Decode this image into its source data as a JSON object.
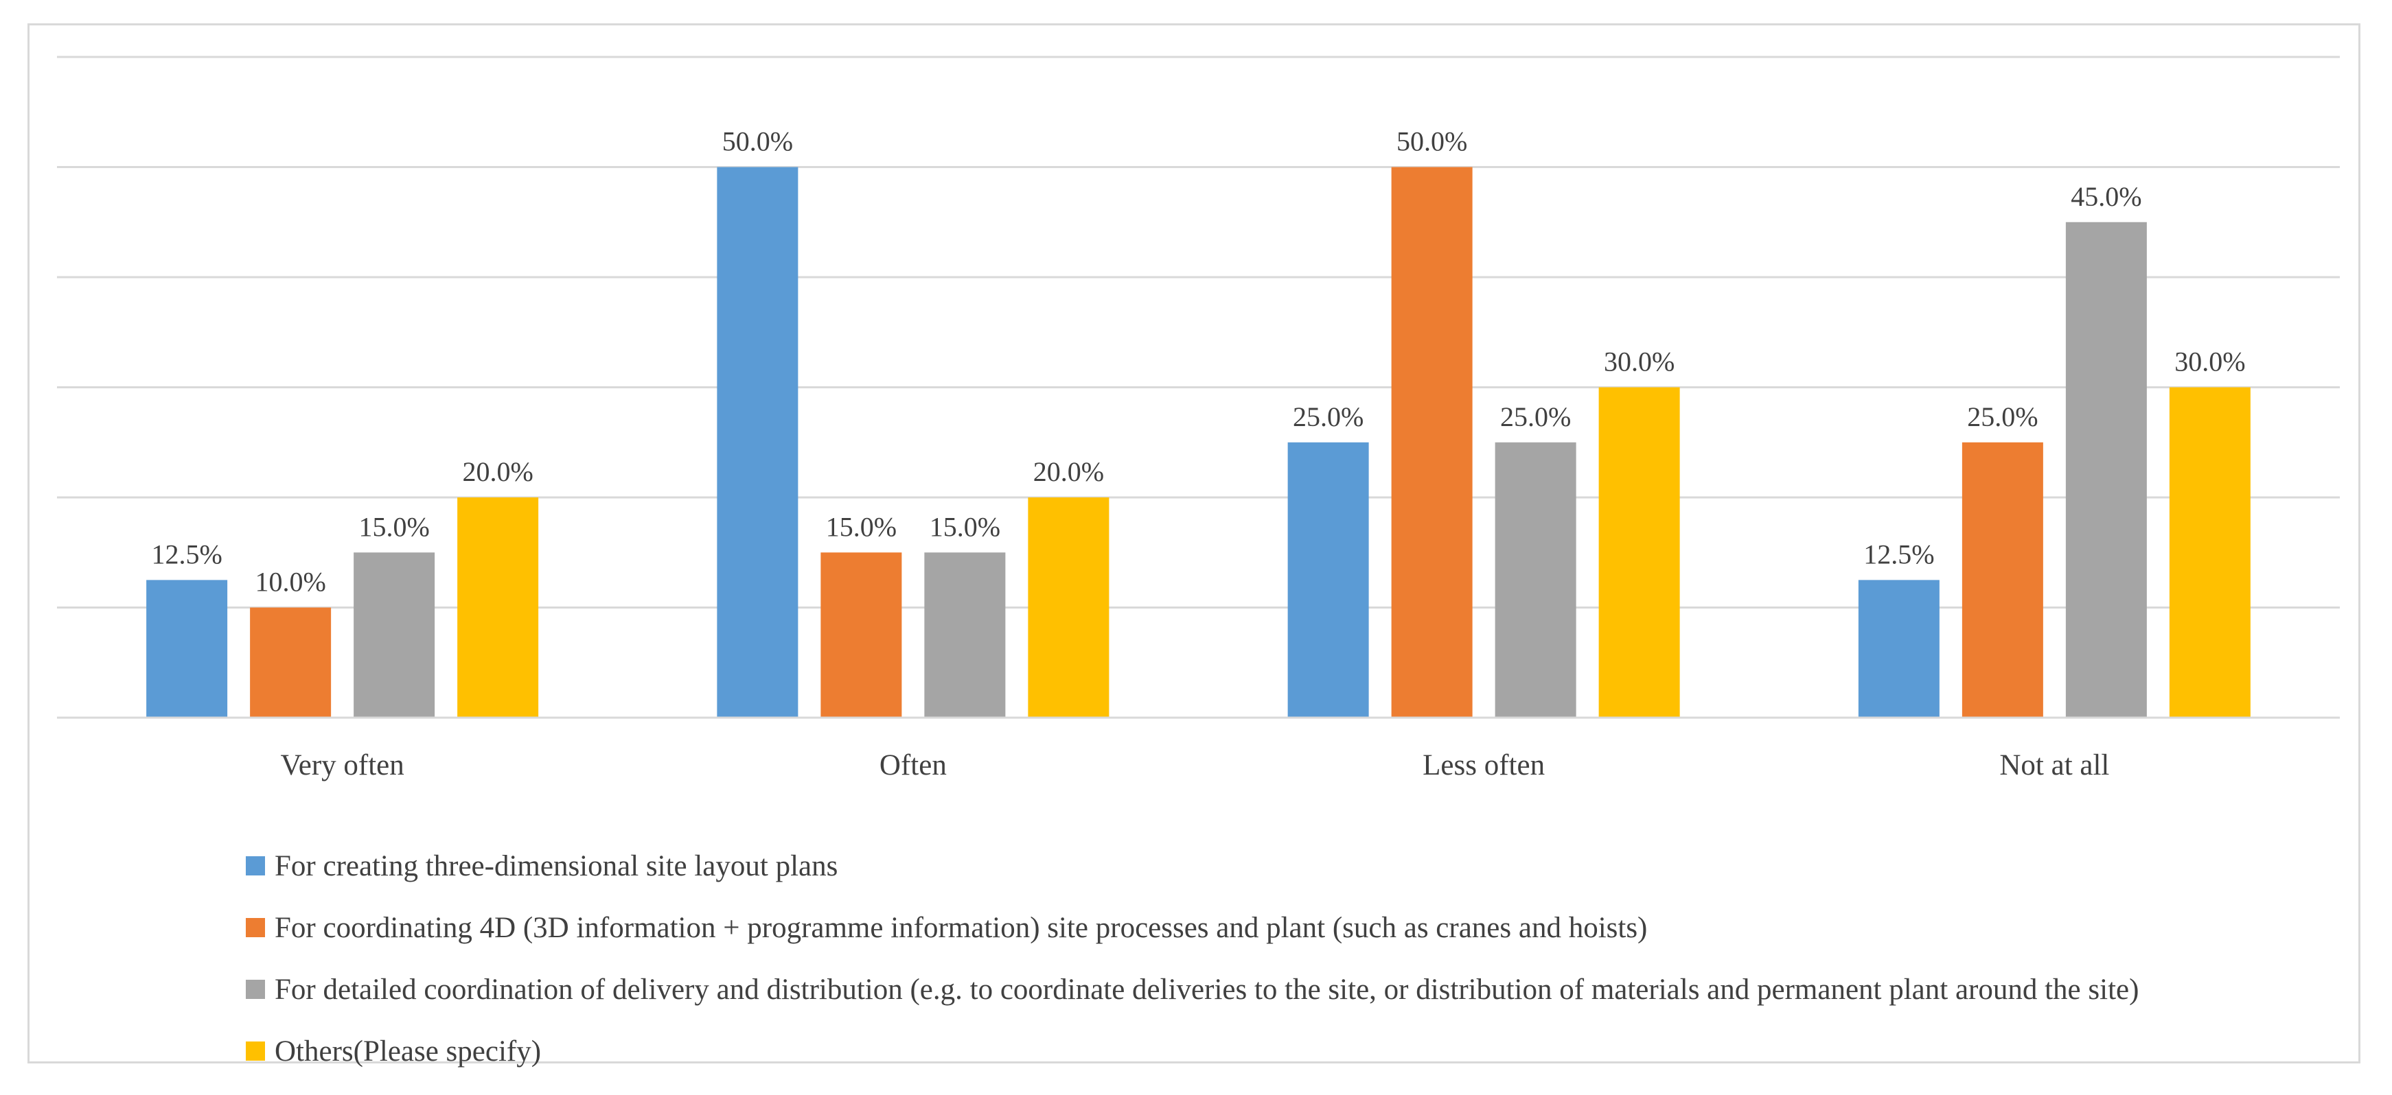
{
  "chart_data": {
    "type": "bar",
    "title": "",
    "xlabel": "",
    "ylabel": "",
    "ylim": [
      0,
      60
    ],
    "grid": true,
    "legend_position": "bottom-left",
    "categories": [
      "Very often",
      "Often",
      "Less often",
      "Not at all"
    ],
    "series": [
      {
        "name": "For creating three-dimensional site layout plans",
        "color": "#5B9BD5",
        "values": [
          12.5,
          50.0,
          25.0,
          12.5
        ],
        "labels": [
          "12.5%",
          "50.0%",
          "25.0%",
          "12.5%"
        ]
      },
      {
        "name": "For coordinating 4D (3D information + programme information) site processes and plant (such as cranes and hoists)",
        "color": "#ED7D31",
        "values": [
          10.0,
          15.0,
          50.0,
          25.0
        ],
        "labels": [
          "10.0%",
          "15.0%",
          "50.0%",
          "25.0%"
        ]
      },
      {
        "name": "For detailed coordination of delivery and distribution (e.g. to coordinate deliveries to the site, or distribution of materials and permanent plant around the site)",
        "color": "#A5A5A5",
        "values": [
          15.0,
          15.0,
          25.0,
          45.0
        ],
        "labels": [
          "15.0%",
          "15.0%",
          "25.0%",
          "45.0%"
        ]
      },
      {
        "name": "Others(Please specify)",
        "color": "#FFC000",
        "values": [
          20.0,
          20.0,
          30.0,
          30.0
        ],
        "labels": [
          "20.0%",
          "20.0%",
          "30.0%",
          "30.0%"
        ]
      }
    ]
  }
}
